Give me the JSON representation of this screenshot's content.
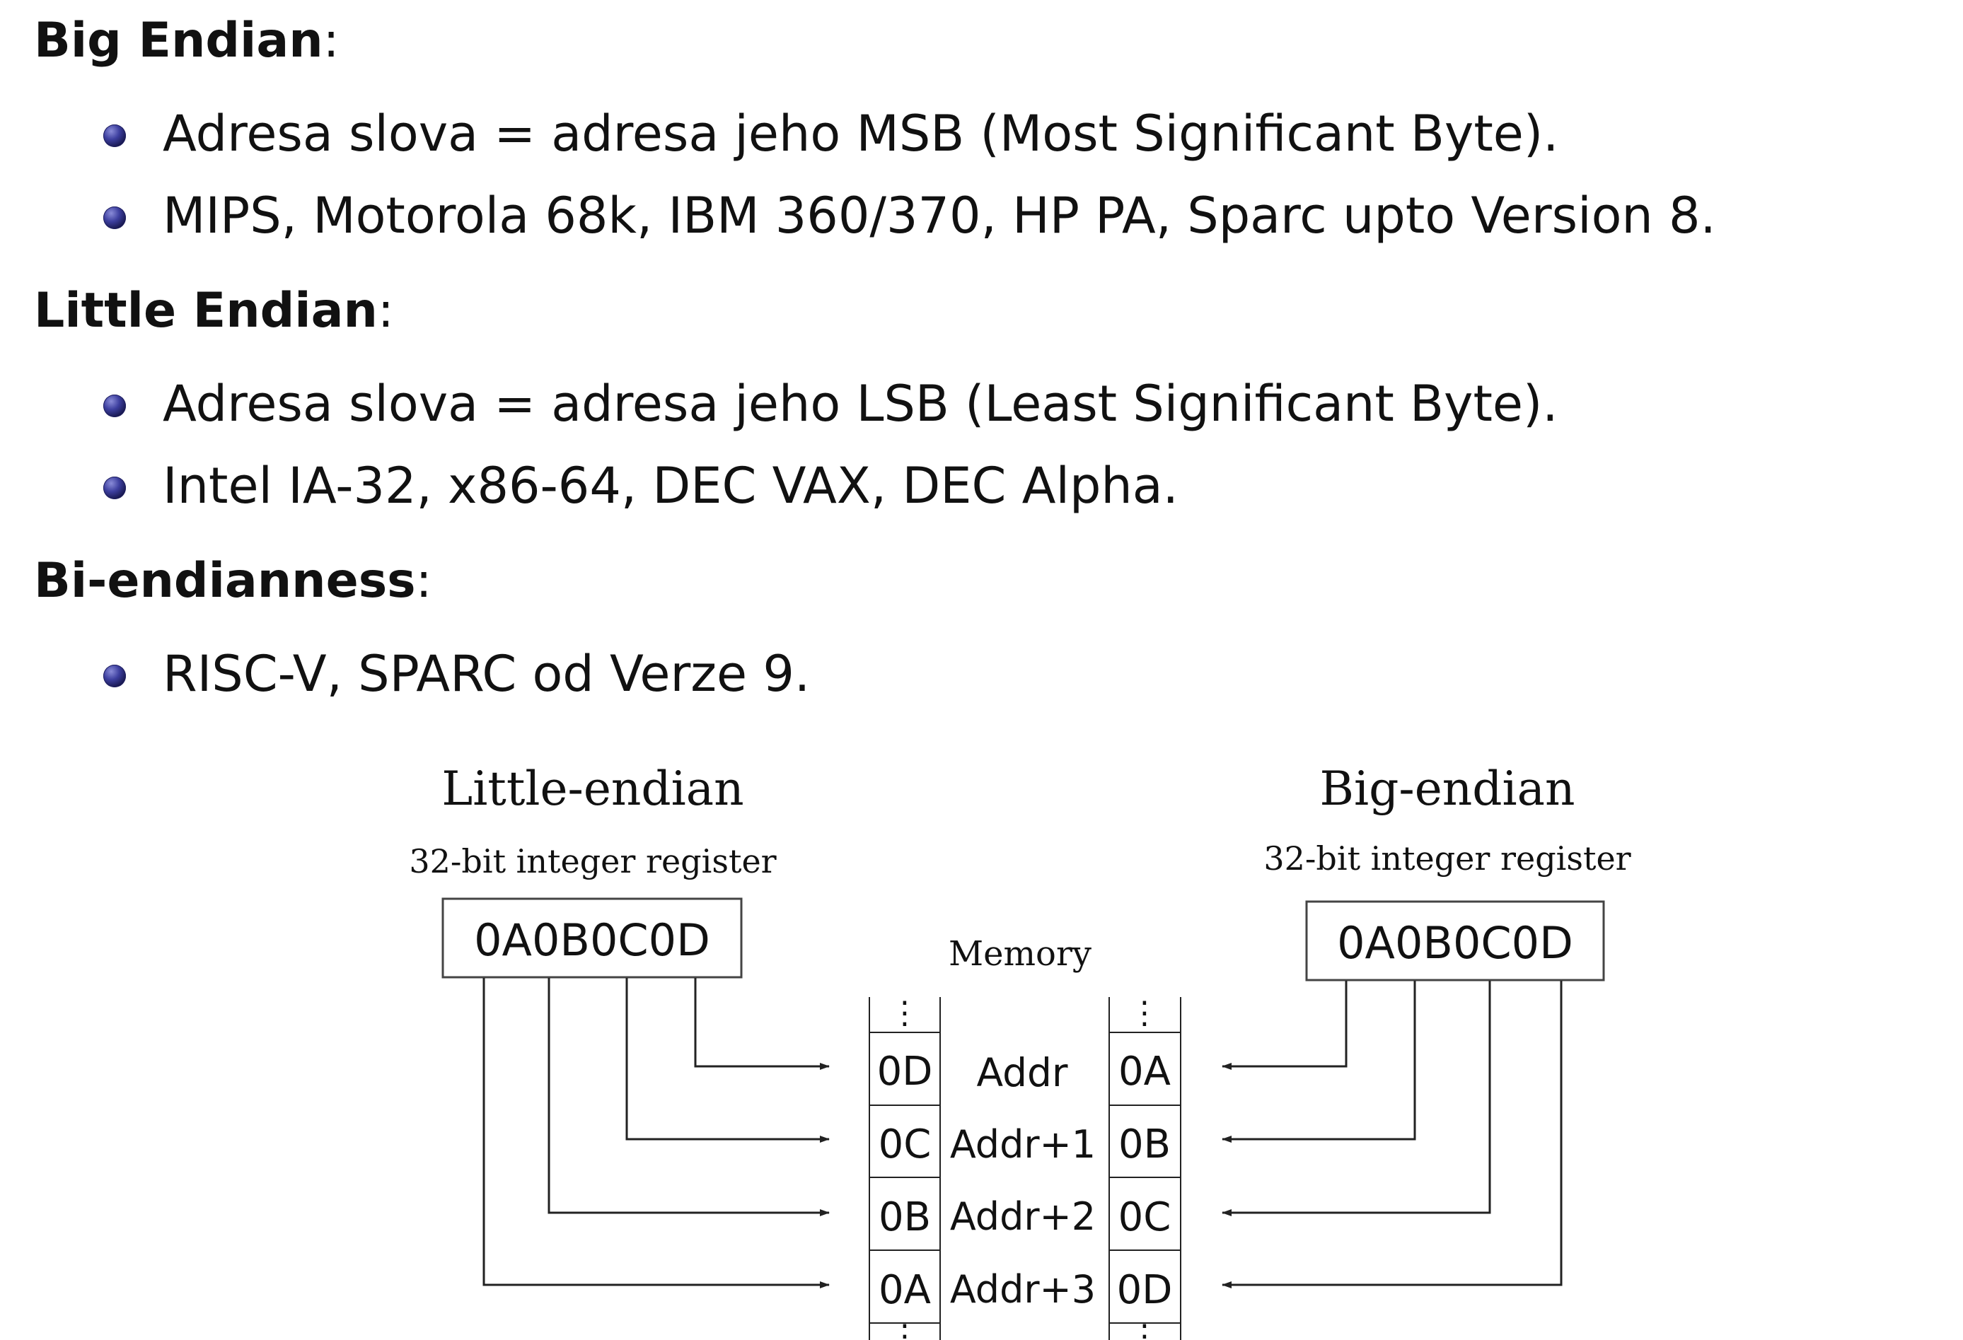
{
  "sections": [
    {
      "title": "Big Endian",
      "colon": ":",
      "bullets": [
        "Adresa slova = adresa jeho MSB (Most Significant Byte).",
        "MIPS, Motorola 68k, IBM 360/370, HP PA, Sparc upto Version 8."
      ]
    },
    {
      "title": "Little Endian",
      "colon": ":",
      "bullets": [
        "Adresa slova = adresa jeho LSB (Least Significant Byte).",
        "Intel IA-32, x86-64, DEC VAX, DEC Alpha."
      ]
    },
    {
      "title": "Bi-endianness",
      "colon": ":",
      "bullets": [
        "RISC-V, SPARC od Verze 9."
      ]
    }
  ],
  "diagram": {
    "little_endian": {
      "title": "Little-endian",
      "register_label": "32-bit integer register",
      "register_value": "0A0B0C0D"
    },
    "big_endian": {
      "title": "Big-endian",
      "register_label": "32-bit integer register",
      "register_value": "0A0B0C0D"
    },
    "memory": {
      "title": "Memory",
      "ellipsis": "⋮",
      "rows": [
        {
          "left": "0D",
          "addr": "Addr",
          "right": "0A"
        },
        {
          "left": "0C",
          "addr": "Addr+1",
          "right": "0B"
        },
        {
          "left": "0B",
          "addr": "Addr+2",
          "right": "0C"
        },
        {
          "left": "0A",
          "addr": "Addr+3",
          "right": "0D"
        }
      ]
    },
    "colors": {
      "line": "#222222",
      "box_border": "#444444",
      "bullet": "#2f2f8f"
    }
  }
}
